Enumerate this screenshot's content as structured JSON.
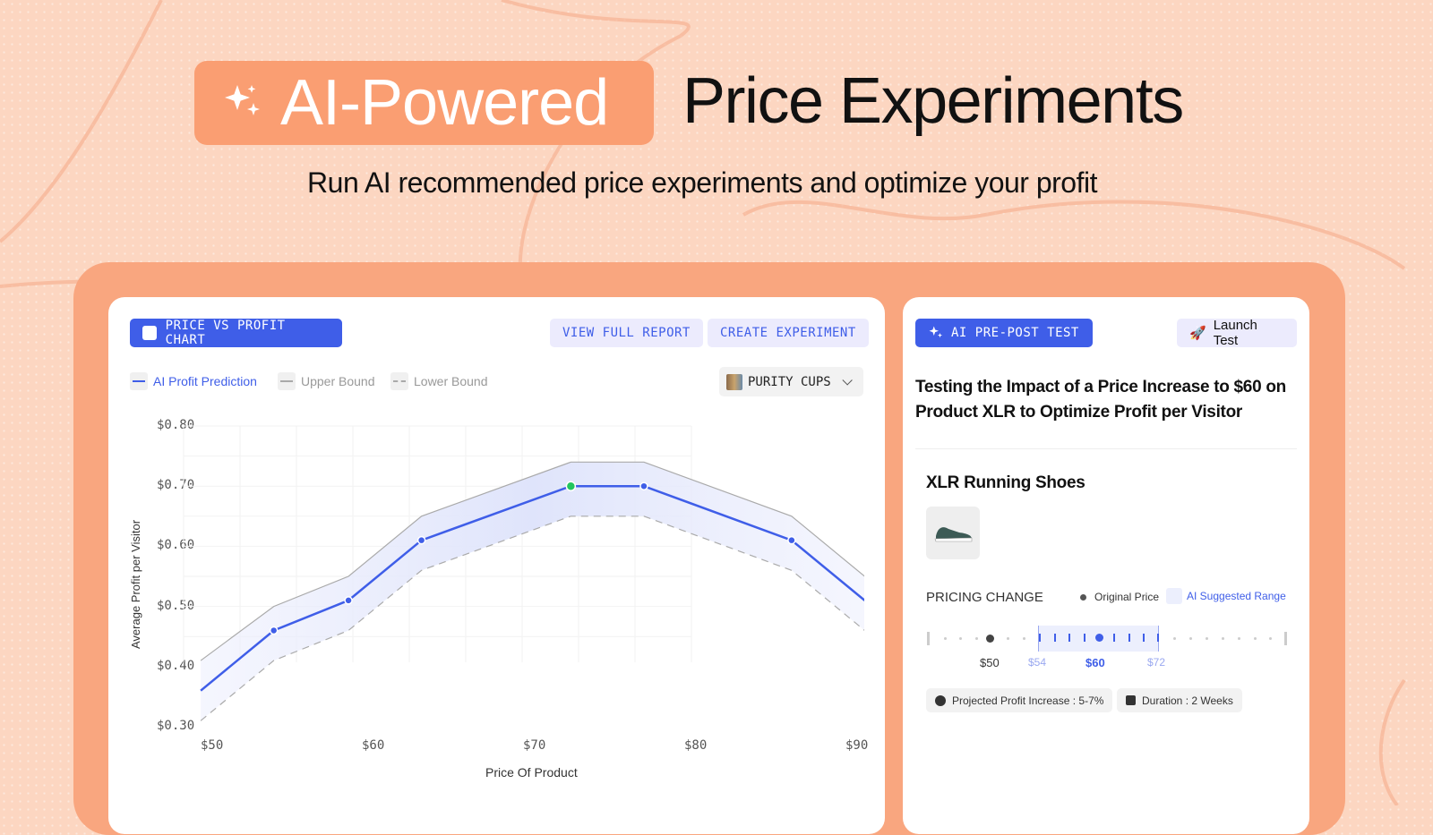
{
  "hero": {
    "badge": "AI-Powered",
    "title": "Price Experiments",
    "subtitle": "Run AI recommended price experiments and optimize your profit"
  },
  "left_panel": {
    "chart_button": "PRICE VS PROFIT CHART",
    "view_report": "VIEW FULL REPORT",
    "create_experiment": "CREATE EXPERIMENT",
    "product_select": "PURITY CUPS",
    "legend": [
      "AI Profit Prediction",
      "Upper Bound",
      "Lower Bound"
    ]
  },
  "colors": {
    "accent": "#3f5ee8",
    "highlight": "#22c55e",
    "badge": "#fa9e72",
    "background": "#fcd6c1"
  },
  "chart_data": {
    "type": "line",
    "xlabel": "Price Of Product",
    "ylabel": "Average Profit per Visitor",
    "x_ticks": [
      "$50",
      "$60",
      "$70",
      "$80",
      "$90"
    ],
    "y_ticks": [
      "$0.80",
      "$0.70",
      "$0.60",
      "$0.50",
      "$0.40",
      "$0.30"
    ],
    "xlim": [
      50,
      90
    ],
    "ylim": [
      0.3,
      0.8
    ],
    "grid": true,
    "x": [
      49.4,
      53.9,
      58.5,
      63,
      72.2,
      76.7,
      85.8,
      90.3
    ],
    "series": [
      {
        "name": "AI Profit Prediction",
        "values": [
          0.36,
          0.46,
          0.51,
          0.61,
          0.7,
          0.7,
          0.61,
          0.51
        ],
        "markers": true,
        "highlight_index": 4
      },
      {
        "name": "Upper Bound",
        "values": [
          0.41,
          0.5,
          0.55,
          0.65,
          0.74,
          0.74,
          0.65,
          0.55
        ]
      },
      {
        "name": "Lower Bound",
        "values": [
          0.31,
          0.41,
          0.46,
          0.56,
          0.65,
          0.65,
          0.56,
          0.46
        ]
      }
    ]
  },
  "right_panel": {
    "badge": "AI PRE-POST TEST",
    "launch": "Launch Test",
    "headline": "Testing the Impact of a Price Increase to $60 on Product XLR to Optimize Profit per Visitor",
    "product": "XLR Running Shoes",
    "pricing_label": "PRICING CHANGE",
    "legend_original": "Original Price",
    "legend_range": "AI Suggested Range",
    "original_price": "$50",
    "range_low": "$54",
    "suggested": "$60",
    "range_high": "$72",
    "profit_chip": "Projected Profit Increase : 5-7%",
    "duration_chip": "Duration : 2 Weeks"
  }
}
